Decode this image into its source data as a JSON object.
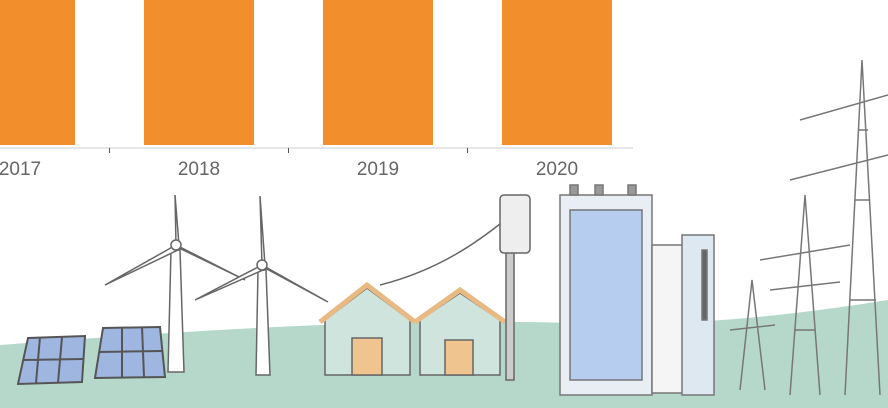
{
  "chart_data": {
    "type": "bar",
    "categories": [
      "2017",
      "2018",
      "2019",
      "2020"
    ],
    "color": "#f28e2b"
  }
}
